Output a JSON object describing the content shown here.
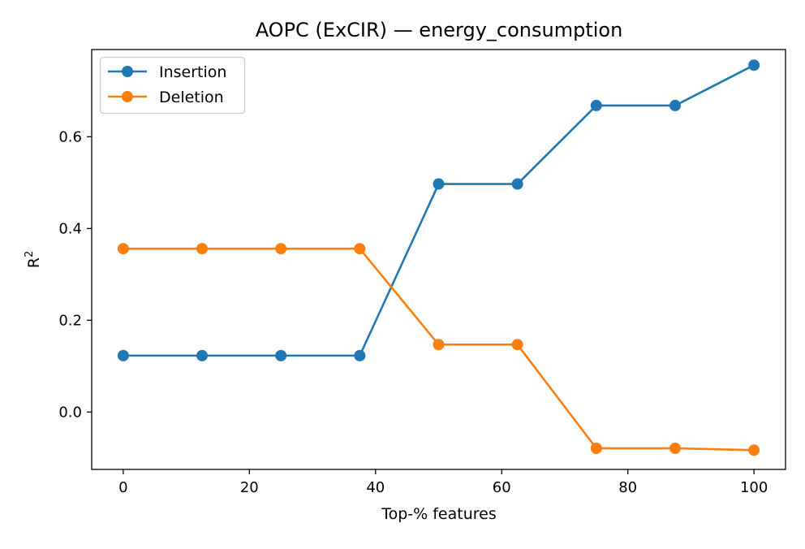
{
  "chart_data": {
    "type": "line",
    "title": "AOPC (ExCIR) — energy_consumption",
    "xlabel": "Top-% features",
    "ylabel": "R",
    "ylabel_superscript": "2",
    "xlim": [
      -5,
      105
    ],
    "ylim": [
      -0.125,
      0.79
    ],
    "xticks": [
      0,
      20,
      40,
      60,
      80,
      100
    ],
    "yticks": [
      0.0,
      0.2,
      0.4,
      0.6
    ],
    "xtick_labels": [
      "0",
      "20",
      "40",
      "60",
      "80",
      "100"
    ],
    "ytick_labels": [
      "0.0",
      "0.2",
      "0.4",
      "0.6"
    ],
    "grid": false,
    "legend_position": "upper-left",
    "x": [
      0,
      12.5,
      25,
      37.5,
      50,
      62.5,
      75,
      87.5,
      100
    ],
    "series": [
      {
        "name": "Insertion",
        "color": "#1f77b4",
        "values": [
          0.123,
          0.123,
          0.123,
          0.123,
          0.497,
          0.497,
          0.668,
          0.668,
          0.756
        ]
      },
      {
        "name": "Deletion",
        "color": "#ff7f0e",
        "values": [
          0.356,
          0.356,
          0.356,
          0.356,
          0.147,
          0.147,
          -0.079,
          -0.079,
          -0.083
        ]
      }
    ]
  }
}
